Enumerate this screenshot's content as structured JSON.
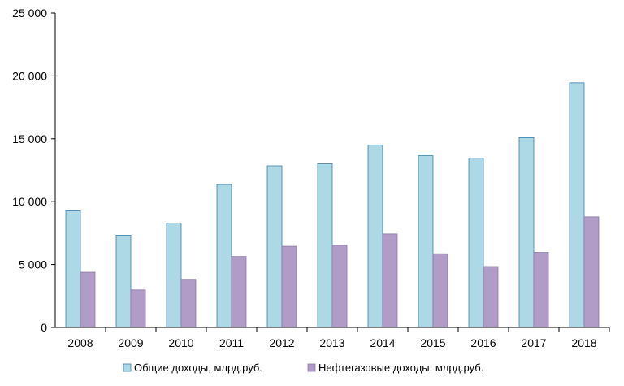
{
  "chart_data": {
    "type": "bar",
    "categories": [
      "2008",
      "2009",
      "2010",
      "2011",
      "2012",
      "2013",
      "2014",
      "2015",
      "2016",
      "2017",
      "2018"
    ],
    "series": [
      {
        "name": "Общие доходы, млрд.руб.",
        "color": "#ADD8E6",
        "stroke": "#3B7FA8",
        "values": [
          9275,
          7337,
          8305,
          11368,
          12856,
          13020,
          14497,
          13659,
          13460,
          15089,
          19454
        ]
      },
      {
        "name": "Нефтегазовые доходы, млрд.руб.",
        "color": "#B19CC8",
        "stroke": "#8C78A6",
        "values": [
          4390,
          2984,
          3831,
          5642,
          6453,
          6534,
          7434,
          5863,
          4844,
          5972,
          8795
        ]
      }
    ],
    "y_ticks": [
      "0",
      "5 000",
      "10 000",
      "15 000",
      "20 000",
      "25 000"
    ],
    "ylim": [
      0,
      25000
    ],
    "title": "",
    "xlabel": "",
    "ylabel": "",
    "grid": false,
    "legend_position": "bottom"
  }
}
